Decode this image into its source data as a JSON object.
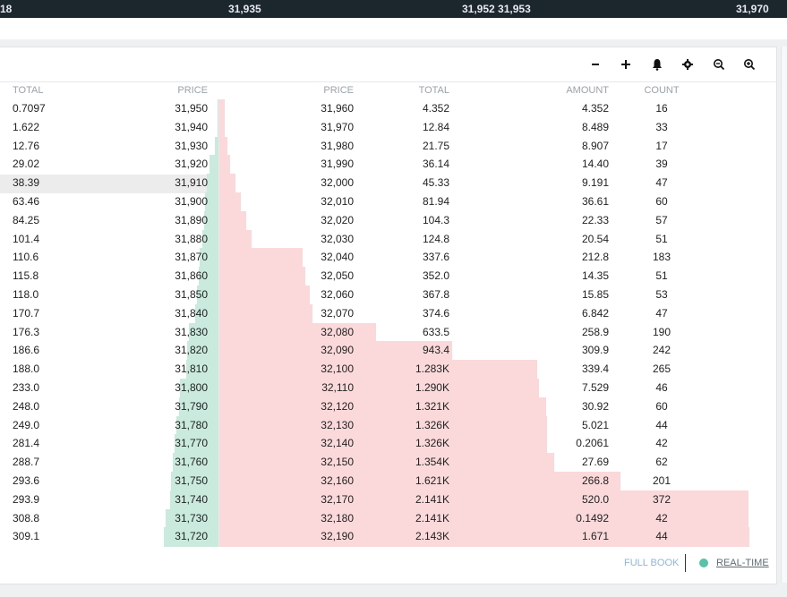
{
  "ticker": [
    "18",
    "31,935",
    "31,952 31,953",
    "31,970"
  ],
  "toolbar": {
    "icons": [
      "minus-icon",
      "plus-icon",
      "bell-icon",
      "gear-icon",
      "zoom-out-icon",
      "zoom-in-icon"
    ]
  },
  "headers": {
    "bid_total": "TOTAL",
    "bid_price": "PRICE",
    "ask_price": "PRICE",
    "ask_total": "TOTAL",
    "ask_amount": "AMOUNT",
    "ask_count": "COUNT"
  },
  "rows": [
    {
      "bt": "0.7097",
      "bp": "31,950",
      "ap": "31,960",
      "at": "4.352",
      "aa": "4.352",
      "ac": "16"
    },
    {
      "bt": "1.622",
      "bp": "31,940",
      "ap": "31,970",
      "at": "12.84",
      "aa": "8.489",
      "ac": "33"
    },
    {
      "bt": "12.76",
      "bp": "31,930",
      "ap": "31,980",
      "at": "21.75",
      "aa": "8.907",
      "ac": "17"
    },
    {
      "bt": "29.02",
      "bp": "31,920",
      "ap": "31,990",
      "at": "36.14",
      "aa": "14.40",
      "ac": "39"
    },
    {
      "bt": "38.39",
      "bp": "31,910",
      "ap": "32,000",
      "at": "45.33",
      "aa": "9.191",
      "ac": "47"
    },
    {
      "bt": "63.46",
      "bp": "31,900",
      "ap": "32,010",
      "at": "81.94",
      "aa": "36.61",
      "ac": "60"
    },
    {
      "bt": "84.25",
      "bp": "31,890",
      "ap": "32,020",
      "at": "104.3",
      "aa": "22.33",
      "ac": "57"
    },
    {
      "bt": "101.4",
      "bp": "31,880",
      "ap": "32,030",
      "at": "124.8",
      "aa": "20.54",
      "ac": "51"
    },
    {
      "bt": "110.6",
      "bp": "31,870",
      "ap": "32,040",
      "at": "337.6",
      "aa": "212.8",
      "ac": "183"
    },
    {
      "bt": "115.8",
      "bp": "31,860",
      "ap": "32,050",
      "at": "352.0",
      "aa": "14.35",
      "ac": "51"
    },
    {
      "bt": "118.0",
      "bp": "31,850",
      "ap": "32,060",
      "at": "367.8",
      "aa": "15.85",
      "ac": "53"
    },
    {
      "bt": "170.7",
      "bp": "31,840",
      "ap": "32,070",
      "at": "374.6",
      "aa": "6.842",
      "ac": "47"
    },
    {
      "bt": "176.3",
      "bp": "31,830",
      "ap": "32,080",
      "at": "633.5",
      "aa": "258.9",
      "ac": "190"
    },
    {
      "bt": "186.6",
      "bp": "31,820",
      "ap": "32,090",
      "at": "943.4",
      "aa": "309.9",
      "ac": "242"
    },
    {
      "bt": "188.0",
      "bp": "31,810",
      "ap": "32,100",
      "at": "1.283K",
      "aa": "339.4",
      "ac": "265"
    },
    {
      "bt": "233.0",
      "bp": "31,800",
      "ap": "32,110",
      "at": "1.290K",
      "aa": "7.529",
      "ac": "46"
    },
    {
      "bt": "248.0",
      "bp": "31,790",
      "ap": "32,120",
      "at": "1.321K",
      "aa": "30.92",
      "ac": "60"
    },
    {
      "bt": "249.0",
      "bp": "31,780",
      "ap": "32,130",
      "at": "1.326K",
      "aa": "5.021",
      "ac": "44"
    },
    {
      "bt": "281.4",
      "bp": "31,770",
      "ap": "32,140",
      "at": "1.326K",
      "aa": "0.2061",
      "ac": "42"
    },
    {
      "bt": "288.7",
      "bp": "31,760",
      "ap": "32,150",
      "at": "1.354K",
      "aa": "27.69",
      "ac": "62"
    },
    {
      "bt": "293.6",
      "bp": "31,750",
      "ap": "32,160",
      "at": "1.621K",
      "aa": "266.8",
      "ac": "201"
    },
    {
      "bt": "293.9",
      "bp": "31,740",
      "ap": "32,170",
      "at": "2.141K",
      "aa": "520.0",
      "ac": "372"
    },
    {
      "bt": "308.8",
      "bp": "31,730",
      "ap": "32,180",
      "at": "2.141K",
      "aa": "0.1492",
      "ac": "42"
    },
    {
      "bt": "309.1",
      "bp": "31,720",
      "ap": "32,190",
      "at": "2.143K",
      "aa": "1.671",
      "ac": "44"
    }
  ],
  "depth": {
    "bid_fraction": [
      0.003,
      0.01,
      0.06,
      0.13,
      0.18,
      0.2,
      0.22,
      0.25,
      0.28,
      0.3,
      0.32,
      0.35,
      0.45,
      0.47,
      0.48,
      0.58,
      0.6,
      0.63,
      0.66,
      0.69,
      0.72,
      0.73,
      0.8,
      0.82
    ],
    "ask_fraction": [
      0.01,
      0.01,
      0.015,
      0.02,
      0.03,
      0.04,
      0.05,
      0.06,
      0.157,
      0.163,
      0.17,
      0.175,
      0.295,
      0.44,
      0.6,
      0.603,
      0.616,
      0.618,
      0.618,
      0.631,
      0.756,
      0.999,
      0.999,
      1.0
    ]
  },
  "footer": {
    "full_book": "FULL BOOK",
    "real_time": "REAL-TIME"
  },
  "colors": {
    "bid": "#c9eadd",
    "ask": "#fbd9da",
    "highlight": "#ececec",
    "accent": "#56c2a6"
  }
}
